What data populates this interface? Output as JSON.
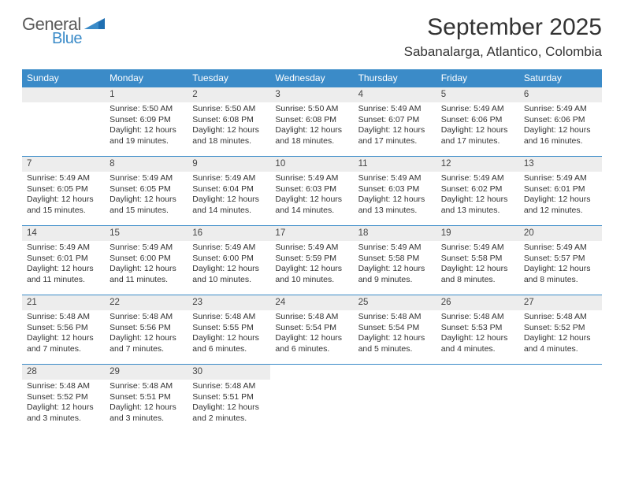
{
  "brand": {
    "word1": "General",
    "word2": "Blue",
    "accent": "#3b8bc8",
    "text_color": "#5a5a5a"
  },
  "title": "September 2025",
  "location": "Sabanalarga, Atlantico, Colombia",
  "colors": {
    "header_bg": "#3b8bc8",
    "header_fg": "#ffffff",
    "daynum_bg": "#ededed",
    "rule": "#3b8bc8",
    "body_text": "#333333"
  },
  "day_headers": [
    "Sunday",
    "Monday",
    "Tuesday",
    "Wednesday",
    "Thursday",
    "Friday",
    "Saturday"
  ],
  "weeks": [
    [
      null,
      {
        "n": "1",
        "sr": "Sunrise: 5:50 AM",
        "ss": "Sunset: 6:09 PM",
        "dl": "Daylight: 12 hours and 19 minutes."
      },
      {
        "n": "2",
        "sr": "Sunrise: 5:50 AM",
        "ss": "Sunset: 6:08 PM",
        "dl": "Daylight: 12 hours and 18 minutes."
      },
      {
        "n": "3",
        "sr": "Sunrise: 5:50 AM",
        "ss": "Sunset: 6:08 PM",
        "dl": "Daylight: 12 hours and 18 minutes."
      },
      {
        "n": "4",
        "sr": "Sunrise: 5:49 AM",
        "ss": "Sunset: 6:07 PM",
        "dl": "Daylight: 12 hours and 17 minutes."
      },
      {
        "n": "5",
        "sr": "Sunrise: 5:49 AM",
        "ss": "Sunset: 6:06 PM",
        "dl": "Daylight: 12 hours and 17 minutes."
      },
      {
        "n": "6",
        "sr": "Sunrise: 5:49 AM",
        "ss": "Sunset: 6:06 PM",
        "dl": "Daylight: 12 hours and 16 minutes."
      }
    ],
    [
      {
        "n": "7",
        "sr": "Sunrise: 5:49 AM",
        "ss": "Sunset: 6:05 PM",
        "dl": "Daylight: 12 hours and 15 minutes."
      },
      {
        "n": "8",
        "sr": "Sunrise: 5:49 AM",
        "ss": "Sunset: 6:05 PM",
        "dl": "Daylight: 12 hours and 15 minutes."
      },
      {
        "n": "9",
        "sr": "Sunrise: 5:49 AM",
        "ss": "Sunset: 6:04 PM",
        "dl": "Daylight: 12 hours and 14 minutes."
      },
      {
        "n": "10",
        "sr": "Sunrise: 5:49 AM",
        "ss": "Sunset: 6:03 PM",
        "dl": "Daylight: 12 hours and 14 minutes."
      },
      {
        "n": "11",
        "sr": "Sunrise: 5:49 AM",
        "ss": "Sunset: 6:03 PM",
        "dl": "Daylight: 12 hours and 13 minutes."
      },
      {
        "n": "12",
        "sr": "Sunrise: 5:49 AM",
        "ss": "Sunset: 6:02 PM",
        "dl": "Daylight: 12 hours and 13 minutes."
      },
      {
        "n": "13",
        "sr": "Sunrise: 5:49 AM",
        "ss": "Sunset: 6:01 PM",
        "dl": "Daylight: 12 hours and 12 minutes."
      }
    ],
    [
      {
        "n": "14",
        "sr": "Sunrise: 5:49 AM",
        "ss": "Sunset: 6:01 PM",
        "dl": "Daylight: 12 hours and 11 minutes."
      },
      {
        "n": "15",
        "sr": "Sunrise: 5:49 AM",
        "ss": "Sunset: 6:00 PM",
        "dl": "Daylight: 12 hours and 11 minutes."
      },
      {
        "n": "16",
        "sr": "Sunrise: 5:49 AM",
        "ss": "Sunset: 6:00 PM",
        "dl": "Daylight: 12 hours and 10 minutes."
      },
      {
        "n": "17",
        "sr": "Sunrise: 5:49 AM",
        "ss": "Sunset: 5:59 PM",
        "dl": "Daylight: 12 hours and 10 minutes."
      },
      {
        "n": "18",
        "sr": "Sunrise: 5:49 AM",
        "ss": "Sunset: 5:58 PM",
        "dl": "Daylight: 12 hours and 9 minutes."
      },
      {
        "n": "19",
        "sr": "Sunrise: 5:49 AM",
        "ss": "Sunset: 5:58 PM",
        "dl": "Daylight: 12 hours and 8 minutes."
      },
      {
        "n": "20",
        "sr": "Sunrise: 5:49 AM",
        "ss": "Sunset: 5:57 PM",
        "dl": "Daylight: 12 hours and 8 minutes."
      }
    ],
    [
      {
        "n": "21",
        "sr": "Sunrise: 5:48 AM",
        "ss": "Sunset: 5:56 PM",
        "dl": "Daylight: 12 hours and 7 minutes."
      },
      {
        "n": "22",
        "sr": "Sunrise: 5:48 AM",
        "ss": "Sunset: 5:56 PM",
        "dl": "Daylight: 12 hours and 7 minutes."
      },
      {
        "n": "23",
        "sr": "Sunrise: 5:48 AM",
        "ss": "Sunset: 5:55 PM",
        "dl": "Daylight: 12 hours and 6 minutes."
      },
      {
        "n": "24",
        "sr": "Sunrise: 5:48 AM",
        "ss": "Sunset: 5:54 PM",
        "dl": "Daylight: 12 hours and 6 minutes."
      },
      {
        "n": "25",
        "sr": "Sunrise: 5:48 AM",
        "ss": "Sunset: 5:54 PM",
        "dl": "Daylight: 12 hours and 5 minutes."
      },
      {
        "n": "26",
        "sr": "Sunrise: 5:48 AM",
        "ss": "Sunset: 5:53 PM",
        "dl": "Daylight: 12 hours and 4 minutes."
      },
      {
        "n": "27",
        "sr": "Sunrise: 5:48 AM",
        "ss": "Sunset: 5:52 PM",
        "dl": "Daylight: 12 hours and 4 minutes."
      }
    ],
    [
      {
        "n": "28",
        "sr": "Sunrise: 5:48 AM",
        "ss": "Sunset: 5:52 PM",
        "dl": "Daylight: 12 hours and 3 minutes."
      },
      {
        "n": "29",
        "sr": "Sunrise: 5:48 AM",
        "ss": "Sunset: 5:51 PM",
        "dl": "Daylight: 12 hours and 3 minutes."
      },
      {
        "n": "30",
        "sr": "Sunrise: 5:48 AM",
        "ss": "Sunset: 5:51 PM",
        "dl": "Daylight: 12 hours and 2 minutes."
      },
      null,
      null,
      null,
      null
    ]
  ]
}
